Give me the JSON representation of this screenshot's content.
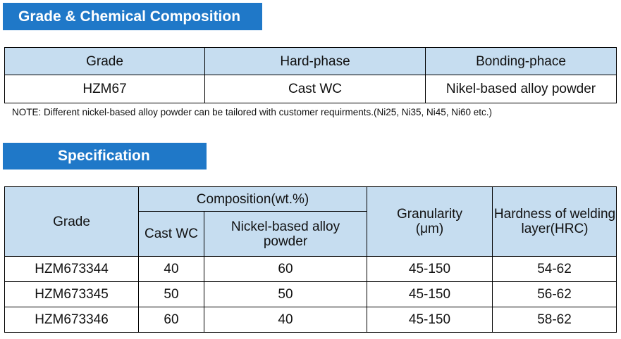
{
  "grade_section": {
    "title": "Grade & Chemical Composition",
    "headers": [
      "Grade",
      "Hard-phase",
      "Bonding-phace"
    ],
    "row": [
      "HZM67",
      "Cast WC",
      "Nikel-based alloy powder"
    ]
  },
  "note": "NOTE: Different nickel-based alloy powder can be tailored with customer requirments.(Ni25, Ni35, Ni45, Ni60 etc.)",
  "spec_section": {
    "title": "Specification",
    "headers": {
      "grade": "Grade",
      "composition": "Composition(wt.%)",
      "cast_wc": "Cast WC",
      "nickel_powder": "Nickel-based alloy powder",
      "granularity": "Granularity (μm)",
      "hardness": "Hardness of welding layer(HRC)"
    },
    "rows": [
      {
        "grade": "HZM673344",
        "cast_wc": "40",
        "nickel": "60",
        "granularity": "45-150",
        "hardness": "54-62"
      },
      {
        "grade": "HZM673345",
        "cast_wc": "50",
        "nickel": "50",
        "granularity": "45-150",
        "hardness": "56-62"
      },
      {
        "grade": "HZM673346",
        "cast_wc": "60",
        "nickel": "40",
        "granularity": "45-150",
        "hardness": "58-62"
      }
    ]
  },
  "colors": {
    "banner": "#1f78c8",
    "header_fill": "#c6ddf0"
  }
}
